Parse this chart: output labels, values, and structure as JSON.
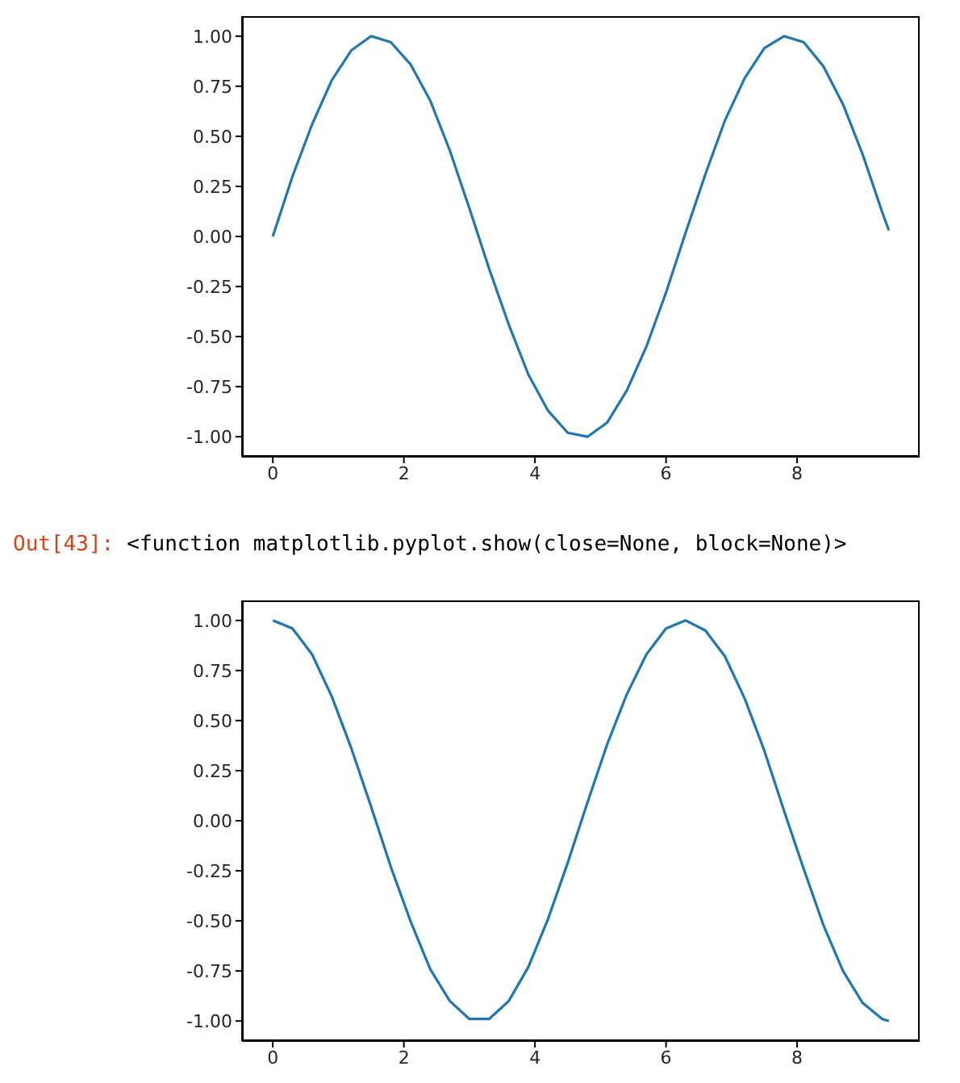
{
  "chart_data": [
    {
      "type": "line",
      "x": [
        0,
        0.3,
        0.6,
        0.9,
        1.2,
        1.5,
        1.8,
        2.1,
        2.4,
        2.7,
        3.0,
        3.3,
        3.6,
        3.9,
        4.2,
        4.5,
        4.8,
        5.1,
        5.4,
        5.7,
        6.0,
        6.3,
        6.6,
        6.9,
        7.2,
        7.5,
        7.8,
        8.1,
        8.4,
        8.7,
        9.0,
        9.3,
        9.4
      ],
      "series": [
        {
          "color": "#1f77b4",
          "values": [
            0,
            0.3,
            0.56,
            0.78,
            0.93,
            1.0,
            0.97,
            0.86,
            0.68,
            0.43,
            0.14,
            -0.16,
            -0.44,
            -0.69,
            -0.87,
            -0.98,
            -1.0,
            -0.93,
            -0.77,
            -0.55,
            -0.28,
            0.02,
            0.31,
            0.58,
            0.79,
            0.94,
            1.0,
            0.97,
            0.85,
            0.66,
            0.41,
            0.12,
            0.03
          ]
        }
      ],
      "xlim": [
        -0.47,
        9.87
      ],
      "xticks": [
        0,
        2,
        4,
        6,
        8
      ],
      "ylim": [
        -1.1,
        1.1
      ],
      "yticks": [
        {
          "value": -1,
          "label": "-1.00"
        },
        {
          "value": -0.75,
          "label": "-0.75"
        },
        {
          "value": -0.5,
          "label": "-0.50"
        },
        {
          "value": -0.25,
          "label": "-0.25"
        },
        {
          "value": 0,
          "label": "0.00"
        },
        {
          "value": 0.25,
          "label": "0.25"
        },
        {
          "value": 0.5,
          "label": "0.50"
        },
        {
          "value": 0.75,
          "label": "0.75"
        },
        {
          "value": 1,
          "label": "1.00"
        }
      ],
      "grid": false,
      "legend": false,
      "marker": "none",
      "line_style": "solid"
    },
    {
      "type": "line",
      "annotations": [
        "Out[43]:",
        "<function matplotlib.pyplot.show(close=None, block=None)>"
      ],
      "x": [
        0,
        0.3,
        0.6,
        0.9,
        1.2,
        1.5,
        1.8,
        2.1,
        2.4,
        2.7,
        3.0,
        3.3,
        3.6,
        3.9,
        4.2,
        4.5,
        4.8,
        5.1,
        5.4,
        5.7,
        6.0,
        6.3,
        6.6,
        6.9,
        7.2,
        7.5,
        7.8,
        8.1,
        8.4,
        8.7,
        9.0,
        9.3,
        9.4
      ],
      "series": [
        {
          "color": "#1f77b4",
          "values": [
            1.0,
            0.96,
            0.83,
            0.62,
            0.36,
            0.07,
            -0.23,
            -0.5,
            -0.74,
            -0.9,
            -0.99,
            -0.99,
            -0.9,
            -0.73,
            -0.49,
            -0.21,
            0.09,
            0.38,
            0.63,
            0.83,
            0.96,
            1.0,
            0.95,
            0.82,
            0.61,
            0.35,
            0.05,
            -0.24,
            -0.52,
            -0.75,
            -0.91,
            -0.99,
            -1.0
          ]
        }
      ],
      "xlim": [
        -0.47,
        9.87
      ],
      "xticks": [
        0,
        2,
        4,
        6,
        8
      ],
      "ylim": [
        -1.1,
        1.1
      ],
      "yticks": [
        {
          "value": -1,
          "label": "-1.00"
        },
        {
          "value": -0.75,
          "label": "-0.75"
        },
        {
          "value": -0.5,
          "label": "-0.50"
        },
        {
          "value": -0.25,
          "label": "-0.25"
        },
        {
          "value": 0,
          "label": "0.00"
        },
        {
          "value": 0.25,
          "label": "0.25"
        },
        {
          "value": 0.5,
          "label": "0.50"
        },
        {
          "value": 0.75,
          "label": "0.75"
        },
        {
          "value": 1,
          "label": "1.00"
        }
      ],
      "grid": false,
      "legend": false,
      "marker": "none",
      "line_style": "solid"
    }
  ]
}
